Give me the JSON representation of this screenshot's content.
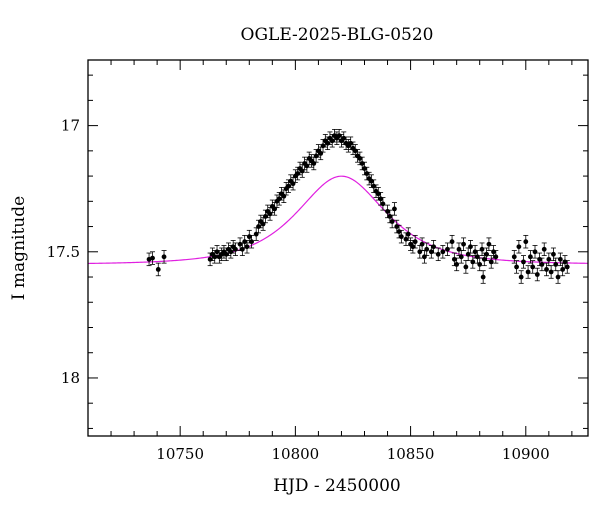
{
  "chart_data": {
    "type": "scatter",
    "title": "OGLE-2025-BLG-0520",
    "xlabel": "HJD - 2450000",
    "ylabel": "I magnitude",
    "xlim": [
      10710,
      10927
    ],
    "ylim": [
      18.23,
      16.74
    ],
    "y_inverted": true,
    "grid": false,
    "x_ticks": [
      10750,
      10800,
      10850,
      10900
    ],
    "x_tick_labels": [
      "10750",
      "10800",
      "10850",
      "10900"
    ],
    "y_ticks": [
      17,
      17.5,
      18
    ],
    "y_tick_labels": [
      "17",
      "17.5",
      "18"
    ],
    "colors": {
      "points": "#000000",
      "model": "#e020e0"
    },
    "model": {
      "t0": 10820,
      "tE": 24,
      "u0": 0.95,
      "baseline": 17.55,
      "fs": 1.0
    },
    "points": [
      [
        10736.5,
        17.53,
        0.025
      ],
      [
        10738,
        17.525,
        0.025
      ],
      [
        10740.5,
        17.57,
        0.025
      ],
      [
        10743,
        17.52,
        0.025
      ],
      [
        10763,
        17.53,
        0.025
      ],
      [
        10764,
        17.51,
        0.025
      ],
      [
        10765,
        17.52,
        0.025
      ],
      [
        10766,
        17.5,
        0.025
      ],
      [
        10767,
        17.52,
        0.025
      ],
      [
        10768,
        17.51,
        0.025
      ],
      [
        10769,
        17.5,
        0.025
      ],
      [
        10770,
        17.51,
        0.025
      ],
      [
        10771,
        17.49,
        0.025
      ],
      [
        10772,
        17.5,
        0.025
      ],
      [
        10773,
        17.48,
        0.025
      ],
      [
        10774,
        17.49,
        0.025
      ],
      [
        10776,
        17.47,
        0.025
      ],
      [
        10777,
        17.49,
        0.025
      ],
      [
        10778,
        17.46,
        0.025
      ],
      [
        10779,
        17.48,
        0.025
      ],
      [
        10780,
        17.44,
        0.025
      ],
      [
        10781,
        17.46,
        0.025
      ],
      [
        10783,
        17.43,
        0.025
      ],
      [
        10784,
        17.4,
        0.025
      ],
      [
        10785,
        17.38,
        0.025
      ],
      [
        10786,
        17.39,
        0.025
      ],
      [
        10787,
        17.36,
        0.025
      ],
      [
        10788,
        17.34,
        0.025
      ],
      [
        10789,
        17.35,
        0.025
      ],
      [
        10790,
        17.32,
        0.025
      ],
      [
        10791,
        17.33,
        0.025
      ],
      [
        10792,
        17.3,
        0.025
      ],
      [
        10793,
        17.29,
        0.025
      ],
      [
        10794,
        17.27,
        0.025
      ],
      [
        10795,
        17.28,
        0.025
      ],
      [
        10796,
        17.25,
        0.025
      ],
      [
        10797,
        17.24,
        0.025
      ],
      [
        10798,
        17.22,
        0.025
      ],
      [
        10799,
        17.23,
        0.025
      ],
      [
        10800,
        17.2,
        0.025
      ],
      [
        10801,
        17.19,
        0.025
      ],
      [
        10802,
        17.17,
        0.025
      ],
      [
        10803,
        17.18,
        0.025
      ],
      [
        10804,
        17.15,
        0.025
      ],
      [
        10805,
        17.16,
        0.025
      ],
      [
        10806,
        17.13,
        0.025
      ],
      [
        10807,
        17.14,
        0.025
      ],
      [
        10808,
        17.15,
        0.025
      ],
      [
        10809,
        17.12,
        0.025
      ],
      [
        10810,
        17.1,
        0.025
      ],
      [
        10811,
        17.11,
        0.025
      ],
      [
        10812,
        17.08,
        0.025
      ],
      [
        10813,
        17.06,
        0.025
      ],
      [
        10814,
        17.07,
        0.025
      ],
      [
        10815,
        17.05,
        0.025
      ],
      [
        10816,
        17.06,
        0.025
      ],
      [
        10817,
        17.04,
        0.025
      ],
      [
        10818,
        17.05,
        0.025
      ],
      [
        10819,
        17.04,
        0.025
      ],
      [
        10820,
        17.06,
        0.025
      ],
      [
        10821,
        17.05,
        0.025
      ],
      [
        10822,
        17.07,
        0.025
      ],
      [
        10823,
        17.08,
        0.025
      ],
      [
        10824,
        17.07,
        0.025
      ],
      [
        10825,
        17.09,
        0.025
      ],
      [
        10826,
        17.1,
        0.025
      ],
      [
        10827,
        17.12,
        0.025
      ],
      [
        10828,
        17.13,
        0.025
      ],
      [
        10829,
        17.15,
        0.025
      ],
      [
        10830,
        17.17,
        0.025
      ],
      [
        10831,
        17.19,
        0.025
      ],
      [
        10832,
        17.21,
        0.025
      ],
      [
        10833,
        17.22,
        0.025
      ],
      [
        10834,
        17.24,
        0.025
      ],
      [
        10835,
        17.26,
        0.025
      ],
      [
        10836,
        17.27,
        0.025
      ],
      [
        10837,
        17.29,
        0.025
      ],
      [
        10838,
        17.31,
        0.025
      ],
      [
        10840,
        17.34,
        0.025
      ],
      [
        10841,
        17.36,
        0.025
      ],
      [
        10842,
        17.38,
        0.025
      ],
      [
        10843,
        17.33,
        0.025
      ],
      [
        10844,
        17.4,
        0.025
      ],
      [
        10845,
        17.42,
        0.025
      ],
      [
        10846,
        17.44,
        0.025
      ],
      [
        10848,
        17.45,
        0.025
      ],
      [
        10849,
        17.43,
        0.025
      ],
      [
        10850,
        17.47,
        0.025
      ],
      [
        10851,
        17.48,
        0.025
      ],
      [
        10852,
        17.46,
        0.025
      ],
      [
        10854,
        17.5,
        0.025
      ],
      [
        10855,
        17.47,
        0.025
      ],
      [
        10856,
        17.52,
        0.025
      ],
      [
        10857,
        17.49,
        0.025
      ],
      [
        10859,
        17.5,
        0.025
      ],
      [
        10860,
        17.48,
        0.025
      ],
      [
        10862,
        17.51,
        0.025
      ],
      [
        10864,
        17.5,
        0.025
      ],
      [
        10866,
        17.49,
        0.025
      ],
      [
        10868,
        17.46,
        0.025
      ],
      [
        10869,
        17.53,
        0.025
      ],
      [
        10870,
        17.55,
        0.025
      ],
      [
        10871,
        17.49,
        0.025
      ],
      [
        10872,
        17.52,
        0.025
      ],
      [
        10873,
        17.47,
        0.025
      ],
      [
        10874,
        17.56,
        0.025
      ],
      [
        10875,
        17.51,
        0.025
      ],
      [
        10876,
        17.48,
        0.025
      ],
      [
        10877,
        17.54,
        0.025
      ],
      [
        10878,
        17.5,
        0.025
      ],
      [
        10879,
        17.52,
        0.025
      ],
      [
        10880,
        17.55,
        0.025
      ],
      [
        10881,
        17.49,
        0.025
      ],
      [
        10882,
        17.53,
        0.025
      ],
      [
        10883,
        17.51,
        0.025
      ],
      [
        10884,
        17.47,
        0.025
      ],
      [
        10885,
        17.54,
        0.025
      ],
      [
        10886,
        17.5,
        0.025
      ],
      [
        10887,
        17.52,
        0.025
      ],
      [
        10881.5,
        17.6,
        0.025
      ],
      [
        10895,
        17.52,
        0.025
      ],
      [
        10896,
        17.56,
        0.025
      ],
      [
        10897,
        17.48,
        0.025
      ],
      [
        10898,
        17.6,
        0.025
      ],
      [
        10899,
        17.54,
        0.025
      ],
      [
        10900,
        17.46,
        0.025
      ],
      [
        10901,
        17.58,
        0.025
      ],
      [
        10902,
        17.52,
        0.025
      ],
      [
        10903,
        17.56,
        0.025
      ],
      [
        10904,
        17.5,
        0.025
      ],
      [
        10905,
        17.59,
        0.025
      ],
      [
        10906,
        17.53,
        0.025
      ],
      [
        10907,
        17.55,
        0.025
      ],
      [
        10908,
        17.49,
        0.025
      ],
      [
        10909,
        17.57,
        0.025
      ],
      [
        10910,
        17.53,
        0.025
      ],
      [
        10911,
        17.58,
        0.025
      ],
      [
        10912,
        17.51,
        0.025
      ],
      [
        10913,
        17.55,
        0.025
      ],
      [
        10914,
        17.6,
        0.025
      ],
      [
        10915,
        17.53,
        0.025
      ],
      [
        10916,
        17.57,
        0.025
      ],
      [
        10917,
        17.54,
        0.025
      ],
      [
        10918,
        17.56,
        0.025
      ]
    ]
  }
}
